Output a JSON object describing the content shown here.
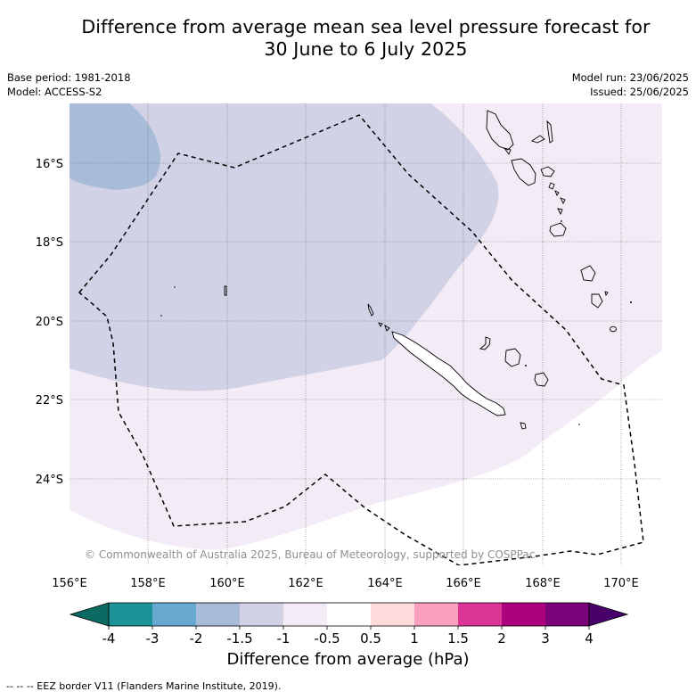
{
  "title_line1": "Difference from average mean sea level pressure forecast for",
  "title_line2": "30 June to 6 July 2025",
  "base_period": "Base period: 1981-2018",
  "model": "Model: ACCESS-S2",
  "model_run": "Model run: 23/06/2025",
  "issued": "Issued: 25/06/2025",
  "copyright": "© Commonwealth of Australia 2025, Bureau of Meteorology, supported by COSPPac",
  "lat_labels": [
    "16°S",
    "18°S",
    "20°S",
    "22°S",
    "24°S"
  ],
  "lon_labels": [
    "156°E",
    "158°E",
    "160°E",
    "162°E",
    "164°E",
    "166°E",
    "168°E",
    "170°E"
  ],
  "colorbar": {
    "title": "Difference from average (hPa)",
    "tick_labels": [
      "-4",
      "-3",
      "-2",
      "-1.5",
      "-1",
      "-0.5",
      "0.5",
      "1",
      "1.5",
      "2",
      "3",
      "4"
    ],
    "colors": [
      "#0b6b63",
      "#1d9298",
      "#67a9d0",
      "#a8bcd9",
      "#d1d2e6",
      "#f3ebf5",
      "#ffffff",
      "#fedcdc",
      "#f8a0bd",
      "#dd3497",
      "#ae017e",
      "#7a0177",
      "#49006a"
    ]
  },
  "footnote": "--  --  -- EEZ border V11 (Flanders Marine Institute, 2019)."
}
